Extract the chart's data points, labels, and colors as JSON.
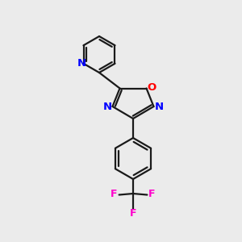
{
  "background_color": "#ebebeb",
  "bond_color": "#1a1a1a",
  "N_color": "#0000ff",
  "O_color": "#ff0000",
  "F_color": "#ff00cc",
  "line_width": 1.6,
  "font_size_N": 9.5,
  "font_size_O": 9.5,
  "font_size_F": 9.0,
  "xlim": [
    0,
    10
  ],
  "ylim": [
    0,
    10
  ]
}
